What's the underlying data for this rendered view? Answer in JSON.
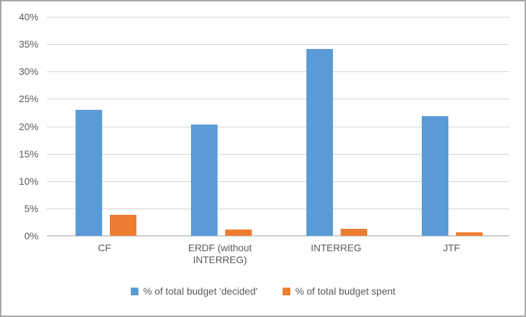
{
  "chart_data": {
    "type": "bar",
    "title": "",
    "xlabel": "",
    "ylabel": "",
    "categories": [
      "CF",
      "ERDF (without INTERREG)",
      "INTERREG",
      "JTF"
    ],
    "series": [
      {
        "name": "% of total budget 'decided'",
        "color": "#5B9BD5",
        "values": [
          23.0,
          20.3,
          34.1,
          21.9
        ]
      },
      {
        "name": "% of total budget spent",
        "color": "#ED7D31",
        "values": [
          3.8,
          1.1,
          1.3,
          0.6
        ]
      }
    ],
    "ylim": [
      0,
      40
    ],
    "ytick_step": 5,
    "ytick_labels": [
      "0%",
      "5%",
      "10%",
      "15%",
      "20%",
      "25%",
      "30%",
      "35%",
      "40%"
    ],
    "grid": true,
    "legend_position": "bottom",
    "colors": {
      "grid_line": "#d2d2d2",
      "axis_text": "#595959",
      "frame_border": "#a6a6a6",
      "background": "#ffffff"
    }
  }
}
